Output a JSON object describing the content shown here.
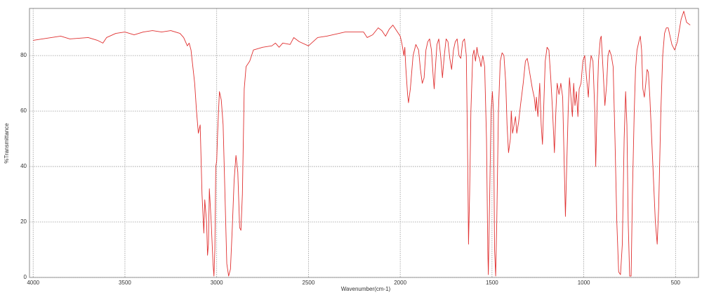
{
  "chart_data": {
    "type": "line",
    "xlabel": "Wavenumber(cm-1)",
    "ylabel": "%Transmittance",
    "xlim": [
      4020,
      375
    ],
    "ylim": [
      0,
      97
    ],
    "xticks": [
      4000,
      3500,
      3000,
      2500,
      2000,
      1500,
      1000,
      500
    ],
    "yticks": [
      0,
      20,
      40,
      60,
      80
    ],
    "grid": true,
    "series": [
      {
        "color": "#e03030",
        "x": [
          4000,
          3900,
          3850,
          3800,
          3700,
          3650,
          3620,
          3600,
          3550,
          3500,
          3450,
          3400,
          3350,
          3300,
          3250,
          3200,
          3180,
          3160,
          3150,
          3140,
          3120,
          3110,
          3100,
          3090,
          3080,
          3070,
          3065,
          3055,
          3050,
          3045,
          3040,
          3030,
          3020,
          3015,
          3010,
          3005,
          3000,
          2995,
          2990,
          2985,
          2975,
          2965,
          2955,
          2945,
          2935,
          2925,
          2915,
          2905,
          2895,
          2885,
          2875,
          2868,
          2860,
          2850,
          2840,
          2820,
          2800,
          2750,
          2700,
          2680,
          2660,
          2640,
          2600,
          2580,
          2550,
          2500,
          2450,
          2400,
          2300,
          2200,
          2180,
          2150,
          2120,
          2100,
          2080,
          2060,
          2040,
          2020,
          2000,
          1990,
          1980,
          1975,
          1970,
          1960,
          1955,
          1945,
          1930,
          1915,
          1900,
          1890,
          1880,
          1870,
          1860,
          1850,
          1840,
          1830,
          1820,
          1815,
          1810,
          1800,
          1790,
          1780,
          1770,
          1760,
          1750,
          1740,
          1730,
          1720,
          1710,
          1700,
          1690,
          1680,
          1670,
          1660,
          1650,
          1640,
          1632,
          1628,
          1622,
          1615,
          1605,
          1598,
          1590,
          1582,
          1575,
          1568,
          1560,
          1550,
          1540,
          1530,
          1523,
          1520,
          1515,
          1505,
          1498,
          1492,
          1486,
          1480,
          1474,
          1465,
          1455,
          1445,
          1435,
          1425,
          1418,
          1410,
          1400,
          1395,
          1388,
          1380,
          1372,
          1365,
          1355,
          1345,
          1330,
          1318,
          1308,
          1300,
          1290,
          1280,
          1270,
          1262,
          1258,
          1250,
          1240,
          1232,
          1225,
          1218,
          1210,
          1200,
          1190,
          1180,
          1170,
          1160,
          1152,
          1145,
          1135,
          1125,
          1115,
          1108,
          1100,
          1093,
          1085,
          1078,
          1070,
          1062,
          1055,
          1048,
          1040,
          1032,
          1025,
          1015,
          1005,
          995,
          985,
          975,
          968,
          960,
          950,
          940,
          935,
          928,
          920,
          910,
          905,
          895,
          885,
          875,
          868,
          860,
          850,
          840,
          830,
          820,
          810,
          800,
          790,
          780,
          772,
          765,
          758,
          750,
          742,
          735,
          725,
          718,
          710,
          700,
          692,
          685,
          678,
          670,
          662,
          655,
          648,
          640,
          630,
          620,
          610,
          600,
          592,
          580,
          570,
          560,
          550,
          540,
          520,
          505,
          490,
          470,
          455,
          440,
          420
        ],
        "values": [
          85.5,
          86.5,
          87,
          86,
          86.5,
          85.5,
          84.5,
          86.5,
          88,
          88.5,
          87.5,
          88.5,
          89,
          88.5,
          89,
          88,
          86.5,
          83.5,
          84.5,
          82,
          70,
          60,
          52,
          55,
          30,
          16,
          28,
          20,
          8,
          12,
          32,
          20,
          5,
          0.5,
          10,
          40,
          42,
          52,
          60,
          67,
          64,
          55,
          30,
          5,
          0.5,
          3,
          18,
          35,
          44,
          38,
          18,
          17,
          30,
          68,
          76,
          78,
          82,
          83,
          83.5,
          84.5,
          83,
          84.5,
          84,
          86.5,
          85,
          83.5,
          86.5,
          87,
          88.5,
          88.5,
          86.5,
          87.5,
          90,
          89,
          87,
          89.5,
          91,
          89,
          87,
          84,
          80,
          83,
          76,
          66,
          63,
          68,
          80,
          84,
          82,
          75,
          70,
          72,
          82,
          85,
          86,
          82,
          72,
          68,
          74,
          84,
          86,
          80,
          72,
          80,
          86,
          85,
          79,
          75,
          82,
          85,
          86,
          80,
          79,
          85,
          86,
          80,
          40,
          12,
          30,
          60,
          80,
          82,
          78,
          83,
          80,
          79,
          76,
          80,
          76,
          50,
          10,
          1,
          20,
          60,
          67,
          60,
          10,
          0.5,
          20,
          60,
          78,
          81,
          80,
          70,
          55,
          45,
          50,
          60,
          52,
          55,
          58,
          52,
          56,
          62,
          70,
          78,
          79,
          76,
          72,
          68,
          65,
          60,
          65,
          58,
          70,
          55,
          48,
          62,
          78,
          83,
          82,
          72,
          60,
          45,
          60,
          70,
          66,
          70,
          65,
          45,
          22,
          40,
          60,
          72,
          65,
          58,
          70,
          62,
          67,
          58,
          68,
          70,
          78,
          80,
          72,
          65,
          75,
          80,
          78,
          60,
          40,
          60,
          78,
          86,
          87,
          75,
          62,
          70,
          80,
          82,
          80,
          76,
          50,
          20,
          2,
          1,
          12,
          50,
          67,
          55,
          20,
          0.5,
          0.5,
          30,
          60,
          75,
          82,
          85,
          87,
          82,
          68,
          65,
          70,
          75,
          74,
          65,
          50,
          35,
          20,
          12,
          25,
          60,
          80,
          88,
          90,
          90,
          84,
          82,
          85,
          93,
          96,
          92,
          91
        ]
      }
    ]
  }
}
